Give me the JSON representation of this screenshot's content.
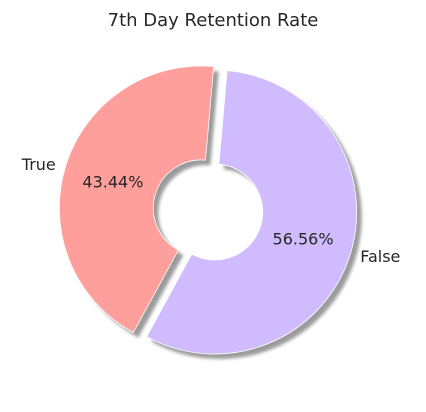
{
  "chart_data": {
    "type": "pie",
    "title": "7th Day Retention Rate",
    "donut": true,
    "shadow": true,
    "exploded": true,
    "slices": [
      {
        "label": "True",
        "value": 43.44,
        "pct_label": "43.44%",
        "color": "#ff9f9b"
      },
      {
        "label": "False",
        "value": 56.56,
        "pct_label": "56.56%",
        "color": "#d0bbff"
      }
    ]
  }
}
